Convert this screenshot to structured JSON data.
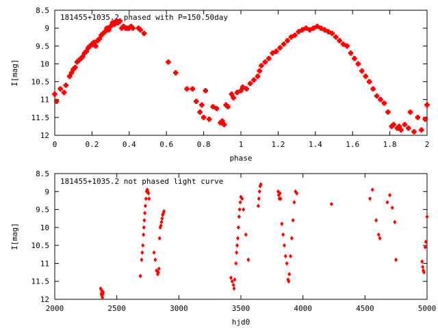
{
  "chart_data": [
    {
      "type": "scatter",
      "title": "181455+1035.2 phased with P=150.50day",
      "xlabel": "phase",
      "ylabel": "I[mag]",
      "xlim": [
        0,
        2
      ],
      "ylim": [
        8.5,
        12
      ],
      "y_inverted": true,
      "grid": false,
      "marker_color": "#ff0000",
      "marker_shape": "cross",
      "xticks": [
        "0",
        "0.2",
        "0.4",
        "0.6",
        "0.8",
        "1",
        "1.2",
        "1.4",
        "1.6",
        "1.8",
        "2"
      ],
      "yticks": [
        "8.5",
        "9",
        "9.5",
        "10",
        "10.5",
        "11",
        "11.5",
        "12"
      ],
      "x": [
        0.0,
        0.01,
        0.03,
        0.05,
        0.06,
        0.08,
        0.09,
        0.1,
        0.11,
        0.12,
        0.13,
        0.14,
        0.15,
        0.16,
        0.17,
        0.18,
        0.19,
        0.2,
        0.21,
        0.22,
        0.23,
        0.24,
        0.25,
        0.26,
        0.27,
        0.28,
        0.29,
        0.3,
        0.31,
        0.32,
        0.33,
        0.34,
        0.35,
        0.36,
        0.37,
        0.38,
        0.39,
        0.4,
        0.41,
        0.42,
        0.45,
        0.46,
        0.48,
        0.61,
        0.65,
        0.71,
        0.74,
        0.76,
        0.78,
        0.79,
        0.8,
        0.81,
        0.83,
        0.85,
        0.87,
        0.89,
        0.9,
        0.91,
        0.92,
        0.93,
        0.95,
        0.96,
        0.98,
        1.0,
        1.01,
        1.03,
        1.05,
        1.07,
        1.09,
        1.1,
        1.11,
        1.13,
        1.15,
        1.17,
        1.19,
        1.21,
        1.23,
        1.25,
        1.27,
        1.29,
        1.31,
        1.33,
        1.35,
        1.37,
        1.39,
        1.41,
        1.43,
        1.45,
        1.47,
        1.49,
        1.51,
        1.53,
        1.55,
        1.57,
        1.59,
        1.61,
        1.63,
        1.65,
        1.67,
        1.69,
        1.71,
        1.73,
        1.75,
        1.77,
        1.79,
        1.81,
        1.82,
        1.84,
        1.85,
        1.86,
        1.88,
        1.9,
        1.91,
        1.93,
        1.95,
        1.97,
        1.99,
        2.0
      ],
      "y": [
        10.85,
        11.05,
        10.7,
        10.8,
        10.6,
        10.35,
        10.25,
        10.15,
        10.1,
        9.95,
        9.9,
        9.85,
        9.8,
        9.7,
        9.65,
        9.55,
        9.5,
        9.45,
        9.4,
        9.5,
        9.35,
        9.3,
        9.2,
        9.15,
        9.1,
        9.0,
        9.05,
        8.95,
        8.85,
        8.9,
        8.8,
        8.85,
        8.8,
        9.0,
        8.95,
        9.0,
        9.0,
        9.0,
        8.95,
        9.0,
        9.0,
        9.05,
        9.15,
        9.95,
        10.25,
        10.7,
        10.7,
        11.05,
        11.35,
        11.15,
        11.5,
        10.75,
        11.55,
        11.2,
        11.25,
        11.65,
        11.6,
        11.7,
        11.15,
        11.2,
        10.85,
        10.95,
        10.8,
        10.75,
        10.65,
        10.7,
        10.55,
        10.45,
        10.35,
        10.2,
        10.05,
        9.95,
        9.85,
        9.7,
        9.65,
        9.55,
        9.45,
        9.35,
        9.25,
        9.2,
        9.1,
        9.05,
        9.0,
        9.05,
        9.0,
        8.95,
        9.0,
        9.05,
        9.1,
        9.15,
        9.25,
        9.35,
        9.45,
        9.5,
        9.7,
        9.85,
        10.0,
        10.2,
        10.35,
        10.5,
        10.7,
        10.9,
        11.0,
        11.1,
        11.35,
        11.75,
        11.7,
        11.8,
        11.75,
        11.85,
        11.7,
        11.8,
        11.35,
        11.9,
        11.5,
        11.85,
        11.55,
        11.15
      ]
    },
    {
      "type": "scatter",
      "title": "181455+1035.2 not phased light curve",
      "xlabel": "hjd0",
      "ylabel": "I[mag]",
      "xlim": [
        2000,
        5000
      ],
      "ylim": [
        8.5,
        12
      ],
      "y_inverted": true,
      "grid": false,
      "marker_color": "#ff0000",
      "marker_shape": "diamond",
      "xticks": [
        "2000",
        "2500",
        "3000",
        "3500",
        "4000",
        "4500",
        "5000"
      ],
      "yticks": [
        "8.5",
        "9",
        "9.5",
        "10",
        "10.5",
        "11",
        "11.5",
        "12"
      ],
      "x": [
        2370,
        2375,
        2378,
        2380,
        2382,
        2385,
        2388,
        2390,
        2690,
        2700,
        2705,
        2710,
        2715,
        2718,
        2722,
        2726,
        2730,
        2735,
        2740,
        2745,
        2750,
        2755,
        2760,
        2800,
        2810,
        2820,
        2830,
        2835,
        2840,
        2845,
        2850,
        2855,
        2860,
        2865,
        2870,
        2875,
        2880,
        3420,
        3430,
        3440,
        3445,
        3450,
        3460,
        3465,
        3470,
        3475,
        3480,
        3485,
        3490,
        3495,
        3500,
        3510,
        3520,
        3540,
        3560,
        3640,
        3645,
        3650,
        3655,
        3660,
        3800,
        3805,
        3810,
        3815,
        3820,
        3830,
        3840,
        3850,
        3860,
        3870,
        3880,
        3885,
        3890,
        3900,
        3910,
        3920,
        3930,
        3940,
        3950,
        4230,
        4540,
        4560,
        4590,
        4610,
        4620,
        4680,
        4700,
        4720,
        4740,
        4750,
        4960,
        4965,
        4970,
        4975,
        4985,
        4990,
        5000
      ],
      "y": [
        11.7,
        11.85,
        11.75,
        11.9,
        11.8,
        11.95,
        11.85,
        11.8,
        11.35,
        10.9,
        10.7,
        10.5,
        10.2,
        10.0,
        9.8,
        9.6,
        9.4,
        9.2,
        9.0,
        8.95,
        9.0,
        9.05,
        9.2,
        10.7,
        10.9,
        11.2,
        11.3,
        11.25,
        11.15,
        10.3,
        10.0,
        9.95,
        9.85,
        9.75,
        9.65,
        9.6,
        9.55,
        11.4,
        11.5,
        11.6,
        11.7,
        11.45,
        11.0,
        10.7,
        10.5,
        10.3,
        10.0,
        9.7,
        9.5,
        9.3,
        9.15,
        9.2,
        9.5,
        10.2,
        10.9,
        9.4,
        9.2,
        9.0,
        8.85,
        8.8,
        9.0,
        9.1,
        9.2,
        9.05,
        9.2,
        9.9,
        10.2,
        10.5,
        10.8,
        11.0,
        11.45,
        11.5,
        11.3,
        10.8,
        10.3,
        9.8,
        9.3,
        9.0,
        9.05,
        9.35,
        9.2,
        8.95,
        9.8,
        10.2,
        10.3,
        9.3,
        9.1,
        9.45,
        9.85,
        10.9,
        10.95,
        11.1,
        11.2,
        11.25,
        10.55,
        10.4,
        9.7
      ]
    }
  ]
}
